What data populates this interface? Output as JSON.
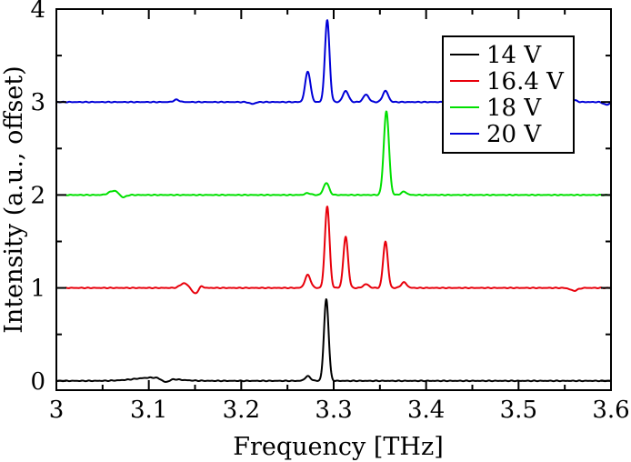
{
  "chart_data": {
    "type": "line",
    "title": "",
    "xlabel": "Frequency [THz]",
    "ylabel": "Intensity (a.u., offset)",
    "xlim": [
      3.0,
      3.6
    ],
    "ylim": [
      -0.1,
      4.0
    ],
    "xticks": [
      3.0,
      3.1,
      3.2,
      3.3,
      3.4,
      3.5,
      3.6
    ],
    "xtick_labels": [
      "3",
      "3.1",
      "3.2",
      "3.3",
      "3.4",
      "3.5",
      "3.6"
    ],
    "yticks": [
      0,
      1,
      2,
      3,
      4
    ],
    "ytick_labels": [
      "0",
      "1",
      "2",
      "3",
      "4"
    ],
    "grid": false,
    "legend_position": "top-right",
    "series": [
      {
        "name": "14 V",
        "color": "#000000",
        "x_start": 3.0,
        "baseline": 0,
        "features": [
          {
            "x": 3.105,
            "amp": 0.035,
            "width": 0.02
          },
          {
            "x": 3.118,
            "amp": -0.04,
            "width": 0.004
          },
          {
            "x": 3.272,
            "amp": 0.05,
            "width": 0.003
          },
          {
            "x": 3.292,
            "amp": 0.88,
            "width": 0.0025
          }
        ]
      },
      {
        "name": "16.4 V",
        "color": "#e8000b",
        "x_start": 3.01,
        "baseline": 1,
        "features": [
          {
            "x": 3.138,
            "amp": 0.05,
            "width": 0.004
          },
          {
            "x": 3.15,
            "amp": -0.06,
            "width": 0.003
          },
          {
            "x": 3.157,
            "amp": 0.02,
            "width": 0.002
          },
          {
            "x": 3.272,
            "amp": 0.14,
            "width": 0.003
          },
          {
            "x": 3.293,
            "amp": 0.88,
            "width": 0.0025
          },
          {
            "x": 3.313,
            "amp": 0.55,
            "width": 0.0025
          },
          {
            "x": 3.335,
            "amp": 0.04,
            "width": 0.003
          },
          {
            "x": 3.356,
            "amp": 0.5,
            "width": 0.0025
          },
          {
            "x": 3.376,
            "amp": 0.06,
            "width": 0.003
          },
          {
            "x": 3.56,
            "amp": -0.03,
            "width": 0.004
          }
        ]
      },
      {
        "name": "18 V",
        "color": "#00e000",
        "x_start": 3.01,
        "baseline": 2,
        "features": [
          {
            "x": 3.062,
            "amp": 0.045,
            "width": 0.005
          },
          {
            "x": 3.072,
            "amp": -0.03,
            "width": 0.003
          },
          {
            "x": 3.272,
            "amp": 0.02,
            "width": 0.003
          },
          {
            "x": 3.292,
            "amp": 0.13,
            "width": 0.003
          },
          {
            "x": 3.357,
            "amp": 0.9,
            "width": 0.0028
          },
          {
            "x": 3.376,
            "amp": 0.035,
            "width": 0.003
          }
        ]
      },
      {
        "name": "20 V",
        "color": "#0000d8",
        "x_start": 3.0,
        "baseline": 3,
        "features": [
          {
            "x": 3.13,
            "amp": 0.025,
            "width": 0.003
          },
          {
            "x": 3.212,
            "amp": -0.02,
            "width": 0.003
          },
          {
            "x": 3.272,
            "amp": 0.33,
            "width": 0.0028
          },
          {
            "x": 3.293,
            "amp": 0.88,
            "width": 0.0025
          },
          {
            "x": 3.313,
            "amp": 0.12,
            "width": 0.003
          },
          {
            "x": 3.335,
            "amp": 0.08,
            "width": 0.003
          },
          {
            "x": 3.356,
            "amp": 0.12,
            "width": 0.003
          },
          {
            "x": 3.56,
            "amp": 0.02,
            "width": 0.003
          },
          {
            "x": 3.595,
            "amp": -0.03,
            "width": 0.003
          }
        ]
      }
    ]
  }
}
